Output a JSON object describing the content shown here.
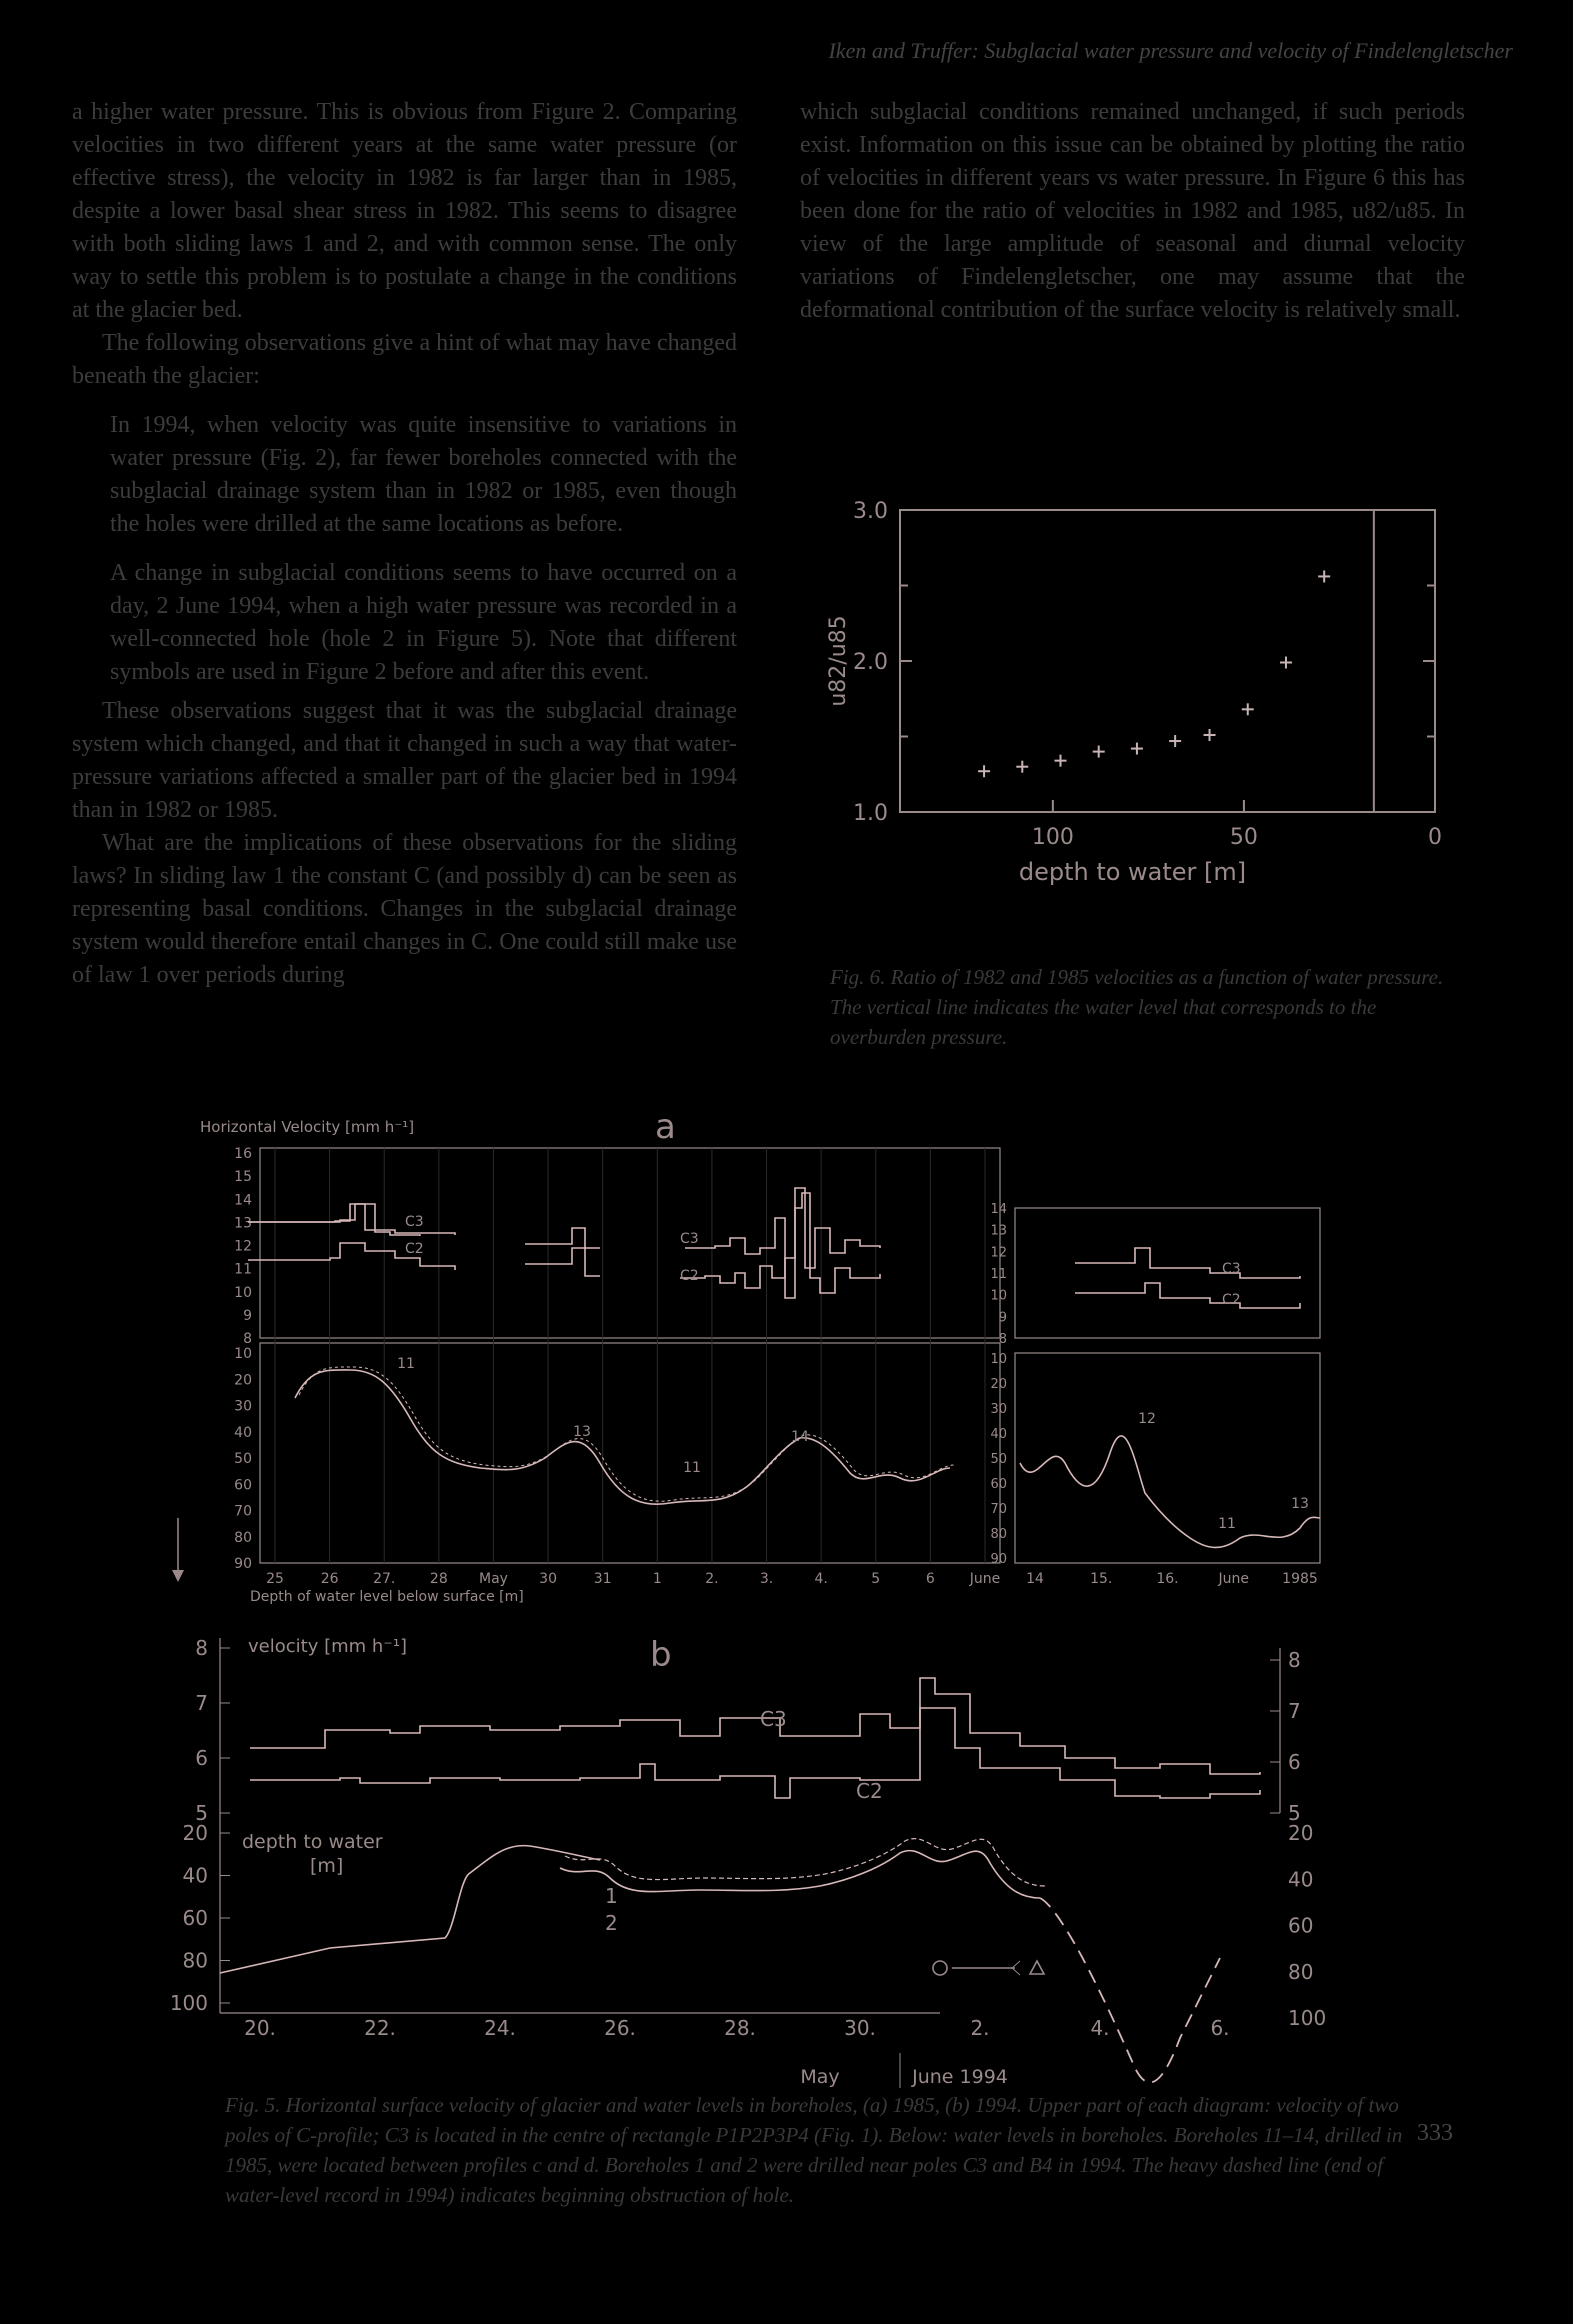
{
  "header": {
    "running_head": "Iken and Truffer: Subglacial water pressure and velocity of Findelengletscher"
  },
  "left_column": {
    "p1": "a higher water pressure. This is obvious from Figure 2. Comparing velocities in two different years at the same water pressure (or effective stress), the velocity in 1982 is far larger than in 1985, despite a lower basal shear stress in 1982. This seems to disagree with both sliding laws 1 and 2, and with common sense. The only way to settle this problem is to postulate a change in the conditions at the glacier bed.",
    "p2": "The following observations give a hint of what may have changed beneath the glacier:",
    "q1": "In 1994, when velocity was quite insensitive to variations in water pressure (Fig. 2), far fewer boreholes connected with the subglacial drainage system than in 1982 or 1985, even though the holes were drilled at the same locations as before.",
    "q2": "A change in subglacial conditions seems to have occurred on a day, 2 June 1994, when a high water pressure was recorded in a well-connected hole (hole 2 in Figure 5). Note that different symbols are used in Figure 2 before and after this event.",
    "p3": "These observations suggest that it was the subglacial drainage system which changed, and that it changed in such a way that water-pressure variations affected a smaller part of the glacier bed in 1994 than in 1982 or 1985.",
    "p4": "What are the implications of these observations for the sliding laws? In sliding law 1 the constant C (and possibly d) can be seen as representing basal conditions. Changes in the subglacial drainage system would therefore entail changes in C. One could still make use of law 1 over periods during"
  },
  "right_column": {
    "p1": "which subglacial conditions remained unchanged, if such periods exist. Information on this issue can be obtained by plotting the ratio of velocities in different years vs water pressure. In Figure 6 this has been done for the ratio of velocities in 1982 and 1985, u82/u85. In view of the large amplitude of seasonal and diurnal velocity variations of Findelengletscher, one may assume that the deformational contribution of the surface velocity is relatively small."
  },
  "fig6": {
    "caption": "Fig. 6. Ratio of 1982 and 1985 velocities as a function of water pressure. The vertical line indicates the water level that corresponds to the overburden pressure.",
    "chart_data": {
      "type": "scatter",
      "xlabel": "depth to water [m]",
      "ylabel": "u82/u85",
      "xlim": [
        140,
        0
      ],
      "ylim": [
        1.0,
        3.0
      ],
      "xticks": [
        "100",
        "50",
        "0"
      ],
      "yticks": [
        "1.0",
        "2.0",
        "3.0"
      ],
      "x": [
        118,
        108,
        98,
        88,
        78,
        68,
        59,
        49,
        39,
        29
      ],
      "y": [
        1.27,
        1.3,
        1.34,
        1.4,
        1.42,
        1.47,
        1.51,
        1.68,
        1.99,
        2.56
      ],
      "overburden_depth": 16
    }
  },
  "fig5": {
    "caption": "Fig. 5. Horizontal surface velocity of glacier and water levels in boreholes, (a) 1985, (b) 1994. Upper part of each diagram: velocity of two poles of C-profile; C3 is located in the centre of rectangle P1P2P3P4 (Fig. 1). Below: water levels in boreholes. Boreholes 11–14, drilled in 1985, were located between profiles c and d. Boreholes 1 and 2 were drilled near poles C3 and B4 in 1994. The heavy dashed line (end of water-level record in 1994) indicates beginning obstruction of hole.",
    "a": {
      "label": "a",
      "vel_title": "Horizontal Velocity [mm h⁻¹]",
      "vel_yticks": [
        "16",
        "15",
        "14",
        "13",
        "12",
        "11",
        "10",
        "9",
        "8"
      ],
      "depth_yticks": [
        "10",
        "20",
        "30",
        "40",
        "50",
        "60",
        "70",
        "80",
        "90"
      ],
      "right_vel_yticks": [
        "14",
        "13",
        "12",
        "11",
        "10",
        "9",
        "8"
      ],
      "right_depth_yticks": [
        "10",
        "20",
        "30",
        "40",
        "50",
        "60",
        "70",
        "80",
        "90"
      ],
      "xticks": [
        "25",
        "26",
        "27.",
        "28",
        "May",
        "30",
        "31",
        "1",
        "2.",
        "3.",
        "4.",
        "5",
        "6",
        "June"
      ],
      "right_xticks": [
        "14",
        "15.",
        "16.",
        "June",
        "1985"
      ],
      "xlabel": "Depth of water level below surface [m]",
      "series": [
        "C3",
        "C2"
      ],
      "hole_labels": [
        "11",
        "13",
        "11",
        "14",
        "12",
        "11",
        "13"
      ]
    },
    "b": {
      "label": "b",
      "vel_title": "velocity [mm h⁻¹]",
      "vel_yticks": [
        "8",
        "7",
        "6",
        "5"
      ],
      "right_vel_yticks": [
        "8",
        "7",
        "6",
        "5"
      ],
      "depth_title": "depth to water",
      "depth_unit": "[m]",
      "depth_yticks": [
        "20",
        "40",
        "60",
        "80",
        "100"
      ],
      "right_depth_yticks": [
        "20",
        "40",
        "60",
        "80",
        "100"
      ],
      "xticks": [
        "20.",
        "22.",
        "24.",
        "26.",
        "28.",
        "30.",
        "2.",
        "4.",
        "6."
      ],
      "month_labels": [
        "May",
        "June 1994"
      ],
      "series": [
        "C3",
        "C2"
      ],
      "hole_labels": [
        "1",
        "2"
      ]
    }
  },
  "page_number": "333"
}
